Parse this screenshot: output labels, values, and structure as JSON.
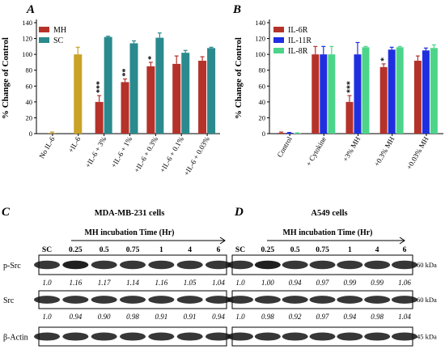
{
  "panels": {
    "A": "A",
    "B": "B",
    "C": "C",
    "D": "D"
  },
  "chart_data": [
    {
      "type": "bar",
      "panel": "A",
      "ylabel": "% Change of Control",
      "ylim": [
        0,
        140
      ],
      "yticks": [
        0,
        20,
        40,
        60,
        80,
        100,
        120,
        140
      ],
      "categories": [
        "No IL-6",
        "+IL-6",
        "+IL-6 + 3%",
        "+IL-6 + 1%",
        "+IL-6 + 0.3%",
        "+IL-6 + 0.1%",
        "+IL-6 + 0.03%"
      ],
      "series": [
        {
          "name": "MH",
          "color": "#b5322a",
          "values": [
            null,
            null,
            40,
            65,
            85,
            88,
            92
          ],
          "errors": [
            null,
            null,
            8,
            4,
            5,
            10,
            5
          ]
        },
        {
          "name": "SC",
          "color": "#2a8a8e",
          "values": [
            null,
            null,
            122,
            114,
            121,
            102,
            108
          ],
          "errors": [
            null,
            null,
            1,
            3,
            6,
            3,
            1
          ]
        }
      ],
      "single_bars": [
        {
          "category": "No IL-6",
          "value": 1,
          "error": 1,
          "color": "#b89a3a"
        },
        {
          "category": "+IL-6",
          "value": 100,
          "error": 9,
          "color": "#c9a227"
        }
      ],
      "significance": [
        "",
        "",
        "***",
        "**",
        "*",
        "",
        ""
      ]
    },
    {
      "type": "bar",
      "panel": "B",
      "ylabel": "% Change of Control",
      "ylim": [
        0,
        140
      ],
      "yticks": [
        0,
        20,
        40,
        60,
        80,
        100,
        120,
        140
      ],
      "categories": [
        "Control",
        "+ Cytokine",
        "+3% MH",
        "+0.3% MH",
        "+0.03% MH"
      ],
      "series": [
        {
          "name": "IL-6R",
          "color": "#b5322a",
          "values": [
            1,
            100,
            40,
            84,
            92
          ],
          "errors": [
            1,
            10,
            8,
            4,
            6
          ]
        },
        {
          "name": "IL-11R",
          "color": "#1f2fe0",
          "values": [
            1,
            100,
            100,
            106,
            105
          ],
          "errors": [
            0.5,
            10,
            15,
            3,
            3
          ]
        },
        {
          "name": "IL-8R",
          "color": "#4cd58a",
          "values": [
            0.5,
            100,
            109,
            109,
            108
          ],
          "errors": [
            0.5,
            10,
            1,
            1,
            4
          ]
        }
      ],
      "significance": [
        "",
        "",
        "***",
        "*",
        ""
      ]
    }
  ],
  "blot_c": {
    "title": "MDA-MB-231 cells",
    "time_label": "MH incubation Time (Hr)",
    "lanes": [
      "SC",
      "0.25",
      "0.5",
      "0.75",
      "1",
      "4",
      "6"
    ],
    "rows": [
      {
        "label": "p-Src",
        "values": [
          "1.0",
          "1.16",
          "1.17",
          "1.14",
          "1.16",
          "1.05",
          "1.04"
        ]
      },
      {
        "label": "Src",
        "values": [
          "1.0",
          "0.94",
          "0.90",
          "0.98",
          "0.91",
          "0.91",
          "0.94"
        ]
      },
      {
        "label": "β-Actin",
        "values": []
      }
    ]
  },
  "blot_d": {
    "title": "A549 cells",
    "time_label": "MH incubation Time (Hr)",
    "lanes": [
      "SC",
      "0.25",
      "0.5",
      "0.75",
      "1",
      "4",
      "6"
    ],
    "rows": [
      {
        "label": "",
        "kda": "60 kDa",
        "values": [
          "1.0",
          "1.00",
          "0.94",
          "0.97",
          "0.99",
          "0.99",
          "1.06"
        ]
      },
      {
        "label": "",
        "kda": "60 kDa",
        "values": [
          "1.0",
          "0.98",
          "0.92",
          "0.97",
          "0.94",
          "0.98",
          "1.04"
        ]
      },
      {
        "label": "",
        "kda": "45 kDa",
        "values": []
      }
    ]
  }
}
